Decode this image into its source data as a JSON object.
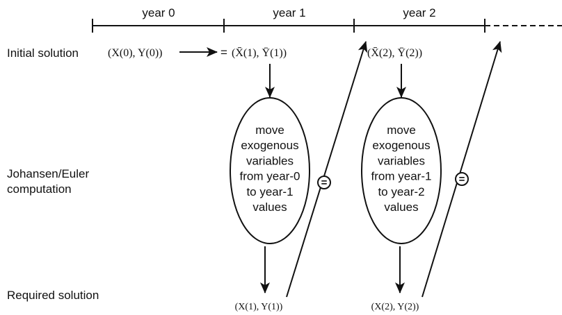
{
  "timeline": {
    "years": [
      "year 0",
      "year 1",
      "year 2"
    ]
  },
  "rows": {
    "initial": "Initial solution",
    "computation": [
      "Johansen/Euler",
      "computation"
    ],
    "required": "Required solution"
  },
  "initial": {
    "start": "(X(0), Y(0))",
    "equals": "=",
    "year1": "(X̄(1), Ȳ(1))",
    "year2": "(X̄(2), Ȳ(2))"
  },
  "steps": [
    {
      "lines": [
        "move",
        "exogenous",
        "variables",
        "from year-0",
        "to year-1",
        "values"
      ],
      "result": "(X(1), Y(1))",
      "link": "="
    },
    {
      "lines": [
        "move",
        "exogenous",
        "variables",
        "from year-1",
        "to year-2",
        "values"
      ],
      "result": "(X(2), Y(2))",
      "link": "="
    }
  ]
}
